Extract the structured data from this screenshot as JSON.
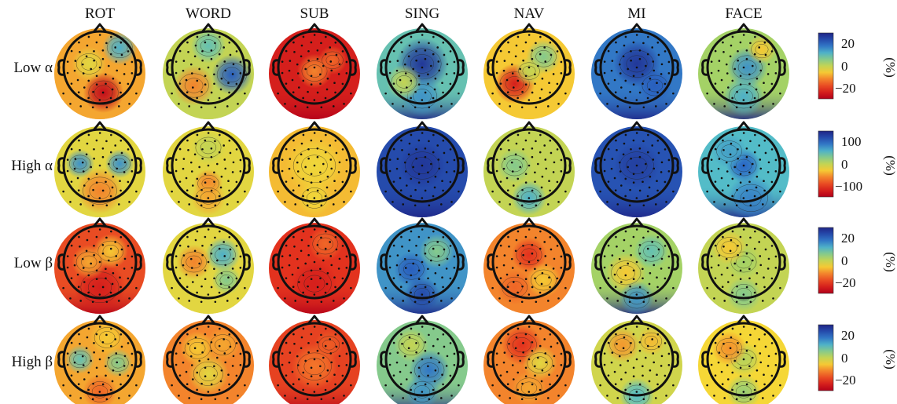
{
  "columns": [
    "ROT",
    "WORD",
    "SUB",
    "SING",
    "NAV",
    "MI",
    "FACE"
  ],
  "rows": [
    {
      "label": "Low α",
      "colorbar": {
        "ticks": [
          "20",
          "0",
          "−20"
        ],
        "unit": "(%)"
      }
    },
    {
      "label": "High α",
      "colorbar": {
        "ticks": [
          "100",
          "0",
          "−100"
        ],
        "unit": "(%)"
      }
    },
    {
      "label": "Low β",
      "colorbar": {
        "ticks": [
          "20",
          "0",
          "−20"
        ],
        "unit": "(%)"
      }
    },
    {
      "label": "High β",
      "colorbar": {
        "ticks": [
          "20",
          "0",
          "−20"
        ],
        "unit": "(%)"
      }
    }
  ],
  "maps": [
    [
      {
        "base": 0.35,
        "spots": [
          [
            0.55,
            -0.55,
            0.3,
            0.35
          ],
          [
            0.1,
            0.7,
            0.35,
            -0.3
          ],
          [
            -0.3,
            -0.1,
            0.3,
            0.1
          ]
        ]
      },
      {
        "base": 0.5,
        "spots": [
          [
            0.65,
            0.2,
            0.35,
            0.35
          ],
          [
            -0.4,
            0.5,
            0.35,
            -0.2
          ],
          [
            0.0,
            -0.6,
            0.3,
            0.15
          ]
        ]
      },
      {
        "base": 0.1,
        "spots": [
          [
            0.0,
            0.1,
            0.3,
            0.2
          ],
          [
            0.5,
            -0.2,
            0.25,
            0.15
          ]
        ]
      },
      {
        "base": 0.65,
        "spots": [
          [
            0.0,
            -0.1,
            0.45,
            0.3
          ],
          [
            0.0,
            0.8,
            0.35,
            0.1
          ],
          [
            -0.5,
            0.4,
            0.3,
            -0.15
          ]
        ]
      },
      {
        "base": 0.4,
        "spots": [
          [
            -0.4,
            0.45,
            0.35,
            -0.3
          ],
          [
            0.4,
            -0.3,
            0.3,
            0.2
          ],
          [
            0.0,
            0.1,
            0.25,
            0.1
          ]
        ]
      },
      {
        "base": 0.8,
        "spots": [
          [
            0.0,
            -0.1,
            0.4,
            0.15
          ],
          [
            0.5,
            0.5,
            0.3,
            0.05
          ]
        ]
      },
      {
        "base": 0.55,
        "spots": [
          [
            0.1,
            0.0,
            0.35,
            0.2
          ],
          [
            0.5,
            -0.5,
            0.25,
            -0.15
          ],
          [
            0.0,
            0.8,
            0.35,
            0.15
          ]
        ]
      }
    ],
    [
      {
        "base": 0.45,
        "spots": [
          [
            -0.55,
            -0.05,
            0.25,
            0.3
          ],
          [
            0.55,
            -0.05,
            0.25,
            0.3
          ],
          [
            0.0,
            0.7,
            0.4,
            -0.15
          ]
        ]
      },
      {
        "base": 0.45,
        "spots": [
          [
            0.0,
            0.5,
            0.25,
            -0.15
          ],
          [
            0.0,
            -0.5,
            0.3,
            0.05
          ],
          [
            0.0,
            0.9,
            0.3,
            -0.1
          ]
        ]
      },
      {
        "base": 0.38,
        "spots": [
          [
            0.0,
            0.0,
            0.5,
            0.05
          ],
          [
            0.0,
            0.9,
            0.3,
            0.05
          ]
        ]
      },
      {
        "base": 0.9,
        "spots": [
          [
            0.0,
            0.0,
            0.4,
            0.05
          ]
        ]
      },
      {
        "base": 0.5,
        "spots": [
          [
            -0.4,
            0.0,
            0.3,
            0.1
          ],
          [
            0.0,
            0.9,
            0.3,
            0.2
          ]
        ]
      },
      {
        "base": 0.88,
        "spots": [
          [
            0.0,
            0.0,
            0.4,
            0.05
          ]
        ]
      },
      {
        "base": 0.68,
        "spots": [
          [
            0.0,
            0.0,
            0.3,
            0.15
          ],
          [
            0.2,
            0.9,
            0.4,
            0.1
          ],
          [
            -0.4,
            -0.4,
            0.3,
            0.05
          ]
        ]
      }
    ],
    [
      {
        "base": 0.2,
        "spots": [
          [
            0.0,
            0.7,
            0.45,
            -0.1
          ],
          [
            0.3,
            -0.3,
            0.3,
            0.2
          ],
          [
            -0.3,
            0.0,
            0.3,
            0.15
          ]
        ]
      },
      {
        "base": 0.45,
        "spots": [
          [
            0.4,
            -0.2,
            0.3,
            0.25
          ],
          [
            -0.4,
            0.0,
            0.3,
            -0.15
          ],
          [
            0.5,
            0.5,
            0.25,
            0.15
          ]
        ]
      },
      {
        "base": 0.15,
        "spots": [
          [
            0.0,
            0.6,
            0.4,
            -0.05
          ],
          [
            0.3,
            -0.5,
            0.3,
            0.1
          ]
        ]
      },
      {
        "base": 0.75,
        "spots": [
          [
            -0.3,
            0.2,
            0.3,
            0.1
          ],
          [
            0.4,
            -0.3,
            0.3,
            -0.15
          ],
          [
            0.0,
            0.9,
            0.3,
            0.15
          ]
        ]
      },
      {
        "base": 0.3,
        "spots": [
          [
            0.0,
            -0.2,
            0.3,
            -0.15
          ],
          [
            0.4,
            0.5,
            0.3,
            0.1
          ],
          [
            -0.4,
            0.7,
            0.3,
            -0.05
          ]
        ]
      },
      {
        "base": 0.55,
        "spots": [
          [
            -0.3,
            0.3,
            0.35,
            -0.15
          ],
          [
            0.4,
            -0.3,
            0.3,
            0.1
          ],
          [
            0.0,
            1.0,
            0.3,
            0.2
          ]
        ]
      },
      {
        "base": 0.5,
        "spots": [
          [
            0.0,
            0.0,
            0.3,
            0.05
          ],
          [
            0.0,
            0.9,
            0.3,
            0.1
          ],
          [
            -0.4,
            -0.4,
            0.3,
            -0.1
          ]
        ]
      }
    ],
    [
      {
        "base": 0.35,
        "spots": [
          [
            -0.55,
            0.0,
            0.25,
            0.3
          ],
          [
            0.5,
            0.1,
            0.25,
            0.25
          ],
          [
            0.0,
            0.9,
            0.3,
            -0.1
          ],
          [
            0.2,
            -0.6,
            0.3,
            0.05
          ]
        ]
      },
      {
        "base": 0.3,
        "spots": [
          [
            0.0,
            0.4,
            0.35,
            0.15
          ],
          [
            -0.3,
            -0.3,
            0.3,
            0.1
          ],
          [
            0.4,
            -0.4,
            0.3,
            0.05
          ]
        ]
      },
      {
        "base": 0.18,
        "spots": [
          [
            0.0,
            0.2,
            0.4,
            0.1
          ],
          [
            0.4,
            -0.4,
            0.25,
            0.05
          ]
        ]
      },
      {
        "base": 0.6,
        "spots": [
          [
            -0.3,
            -0.4,
            0.3,
            -0.1
          ],
          [
            0.2,
            0.3,
            0.35,
            0.2
          ],
          [
            0.0,
            0.9,
            0.3,
            0.15
          ]
        ]
      },
      {
        "base": 0.3,
        "spots": [
          [
            -0.2,
            -0.4,
            0.35,
            -0.15
          ],
          [
            0.3,
            0.1,
            0.3,
            0.15
          ],
          [
            0.0,
            0.8,
            0.3,
            0.05
          ]
        ]
      },
      {
        "base": 0.48,
        "spots": [
          [
            -0.4,
            -0.4,
            0.3,
            -0.15
          ],
          [
            0.4,
            -0.5,
            0.25,
            -0.1
          ],
          [
            0.0,
            1.0,
            0.3,
            0.2
          ]
        ]
      },
      {
        "base": 0.42,
        "spots": [
          [
            0.0,
            0.0,
            0.3,
            0.1
          ],
          [
            -0.4,
            -0.3,
            0.3,
            -0.1
          ],
          [
            0.0,
            0.9,
            0.3,
            0.15
          ]
        ]
      }
    ]
  ]
}
